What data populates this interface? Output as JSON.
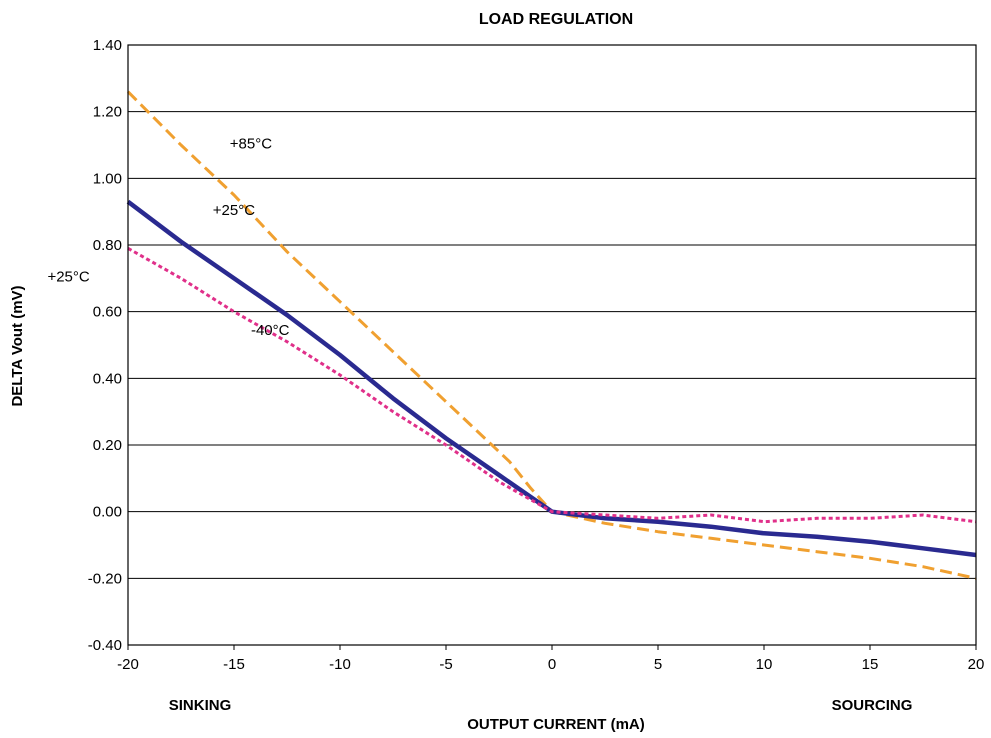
{
  "chart_data": {
    "type": "line",
    "title": "LOAD REGULATION",
    "xlabel": "OUTPUT CURRENT (mA)",
    "ylabel": "DELTA Vout (mV)",
    "xlim": [
      -20,
      20
    ],
    "ylim": [
      -0.4,
      1.4
    ],
    "x_ticks": [
      "-20",
      "-15",
      "-10",
      "-5",
      "0",
      "5",
      "10",
      "15",
      "20"
    ],
    "y_ticks": [
      "1.40",
      "1.20",
      "1.00",
      "0.80",
      "0.60",
      "0.40",
      "0.20",
      "0.00",
      "-0.20",
      "-0.40"
    ],
    "grid": "horizontal",
    "x_annotations": {
      "left": "SINKING",
      "right": "SOURCING"
    },
    "series": [
      {
        "name": "+85°C",
        "color": "#F0A030",
        "style": "dashed",
        "x": [
          -20,
          -17.5,
          -15,
          -12.5,
          -10,
          -7.5,
          -5,
          -3,
          -2,
          -1,
          0,
          2.5,
          5,
          7.5,
          10,
          12.5,
          15,
          17.5,
          20
        ],
        "y": [
          1.26,
          1.1,
          0.95,
          0.78,
          0.63,
          0.48,
          0.33,
          0.21,
          0.15,
          0.07,
          0.0,
          -0.035,
          -0.06,
          -0.08,
          -0.1,
          -0.12,
          -0.14,
          -0.165,
          -0.2
        ]
      },
      {
        "name": "+25°C",
        "color": "#2A2A90",
        "style": "solid",
        "x": [
          -20,
          -17.5,
          -15,
          -12.5,
          -10,
          -7.5,
          -5,
          -2.5,
          0,
          2.5,
          5,
          7.5,
          10,
          12.5,
          15,
          17.5,
          20
        ],
        "y": [
          0.93,
          0.81,
          0.7,
          0.59,
          0.47,
          0.34,
          0.22,
          0.11,
          0.0,
          -0.02,
          -0.03,
          -0.045,
          -0.065,
          -0.075,
          -0.09,
          -0.11,
          -0.13
        ]
      },
      {
        "name": "-40°C",
        "color": "#E0308A",
        "style": "dotted",
        "x": [
          -20,
          -17.5,
          -15,
          -12.5,
          -10,
          -7.5,
          -5,
          -2.5,
          0,
          2.5,
          5,
          7.5,
          10,
          12.5,
          15,
          17.5,
          20
        ],
        "y": [
          0.79,
          0.7,
          0.6,
          0.51,
          0.41,
          0.3,
          0.2,
          0.09,
          0.0,
          -0.01,
          -0.02,
          -0.01,
          -0.03,
          -0.02,
          -0.02,
          -0.01,
          -0.03
        ]
      }
    ],
    "annotations": [
      {
        "text": "+85°C",
        "x": -15.2,
        "y": 1.09
      },
      {
        "text": "+25°C",
        "x": -16.0,
        "y": 0.89
      },
      {
        "text": "+25°C",
        "x": -23.8,
        "y": 0.69
      },
      {
        "text": "-40°C",
        "x": -14.2,
        "y": 0.53
      }
    ]
  }
}
